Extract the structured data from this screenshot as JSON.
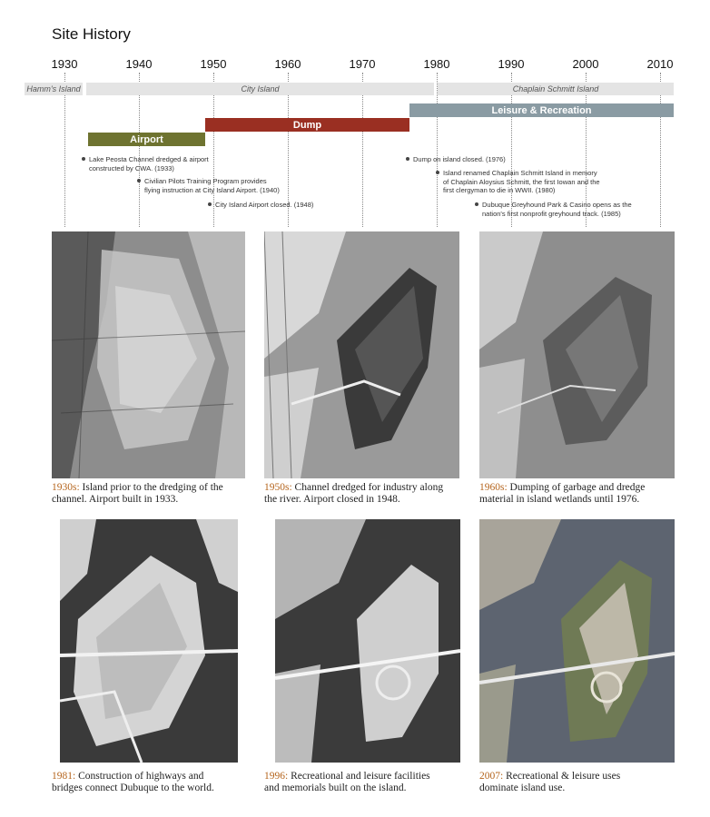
{
  "title": "Site History",
  "years": [
    "1930",
    "1940",
    "1950",
    "1960",
    "1970",
    "1980",
    "1990",
    "2000",
    "2010"
  ],
  "eras": [
    "Hamm's Island",
    "City Island",
    "Chaplain Schmitt Island"
  ],
  "bars": {
    "airport": "Airport",
    "dump": "Dump",
    "leisure": "Leisure & Recreation"
  },
  "colors": {
    "airport": "#6e7330",
    "dump": "#9a2f22",
    "leisure": "#8a9ba3",
    "decade": "#b5651d"
  },
  "events": [
    {
      "line1": "Lake Peosta Channel dredged & airport",
      "line2": "constructed by CWA. (1933)",
      "line3": ""
    },
    {
      "line1": "Civilian Pilots Training Program provides",
      "line2": "flying instruction at City Island Airport. (1940)",
      "line3": ""
    },
    {
      "line1": "City Island Airport closed. (1948)",
      "line2": "",
      "line3": ""
    },
    {
      "line1": "Dump on island closed. (1976)",
      "line2": "",
      "line3": ""
    },
    {
      "line1": "Island renamed Chaplain Schmitt Island in memory",
      "line2": "of Chaplain Aloysius Schmitt, the first Iowan and the",
      "line3": "first clergyman to die in WWII. (1980)"
    },
    {
      "line1": "Dubuque Greyhound Park & Casino opens as the",
      "line2": "nation's first nonprofit greyhound track. (1985)",
      "line3": ""
    }
  ],
  "photos": [
    {
      "decade": "1930s:",
      "line1": " Island prior to the dredging of the",
      "line2": "channel. Airport built in 1933."
    },
    {
      "decade": "1950s:",
      "line1": " Channel dredged for industry along",
      "line2": "the river. Airport closed in 1948."
    },
    {
      "decade": "1960s:",
      "line1": " Dumping of garbage and dredge",
      "line2": "material in island wetlands until 1976."
    },
    {
      "decade": "1981:",
      "line1": " Construction of highways and",
      "line2": "bridges connect Dubuque to the world."
    },
    {
      "decade": "1996:",
      "line1": " Recreational and leisure facilities",
      "line2": "and memorials built on the island."
    },
    {
      "decade": "2007:",
      "line1": " Recreational & leisure uses",
      "line2": "dominate island use."
    }
  ]
}
